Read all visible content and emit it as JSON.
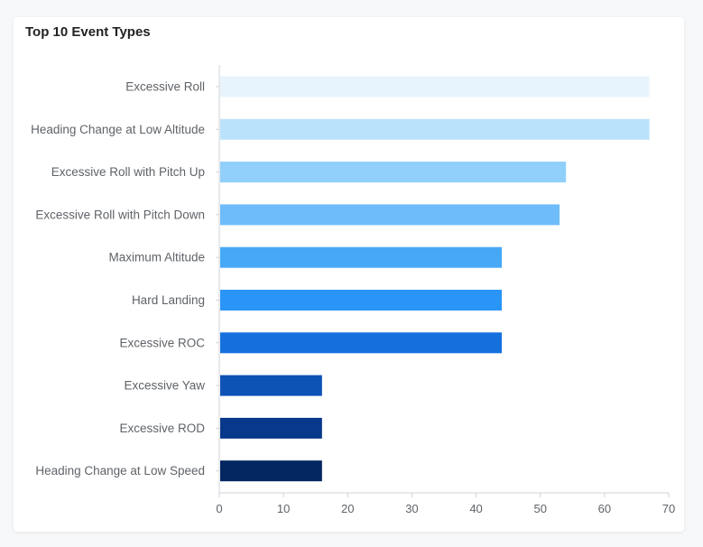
{
  "card": {
    "title": "Top 10 Event Types"
  },
  "chart_data": {
    "type": "bar",
    "orientation": "horizontal",
    "title": "Top 10 Event Types",
    "xlabel": "",
    "ylabel": "",
    "categories": [
      "Excessive Roll",
      "Heading Change at Low Altitude",
      "Excessive Roll with Pitch Up",
      "Excessive Roll with Pitch Down",
      "Maximum Altitude",
      "Hard Landing",
      "Excessive ROC",
      "Excessive Yaw",
      "Excessive ROD",
      "Heading Change at Low Speed"
    ],
    "values": [
      67,
      67,
      54,
      53,
      44,
      44,
      44,
      16,
      16,
      16
    ],
    "colors": [
      "#e8f4fd",
      "#bbe2fb",
      "#90d0fb",
      "#6ebcf9",
      "#47a8f8",
      "#2a94f7",
      "#1570de",
      "#0d52b5",
      "#08388a",
      "#042661"
    ],
    "xlim": [
      0,
      70
    ],
    "xticks": [
      0,
      10,
      20,
      30,
      40,
      50,
      60,
      70
    ],
    "grid": false,
    "legend": "none"
  }
}
